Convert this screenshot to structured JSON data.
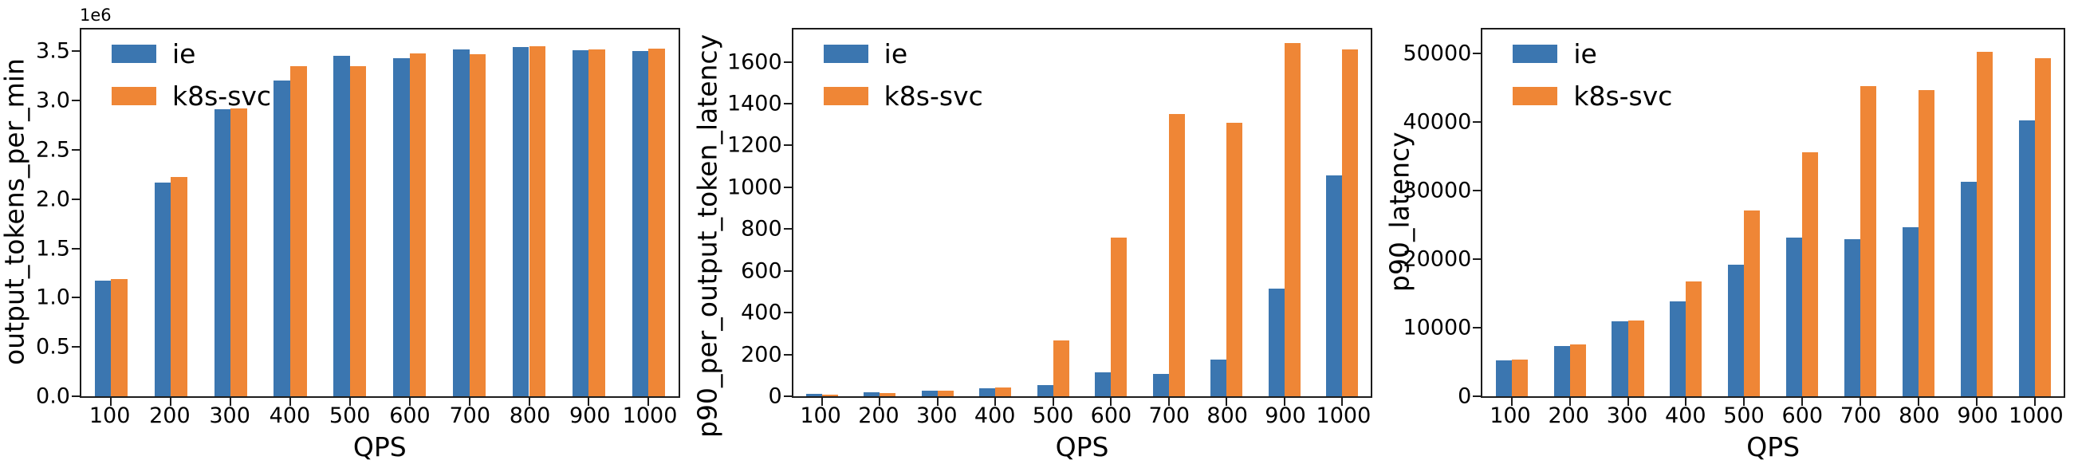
{
  "figure": {
    "background": "#ffffff",
    "series_colors": {
      "ie": "#3b76b0",
      "k8s-svc": "#ef8636"
    }
  },
  "chart_data": [
    {
      "type": "bar",
      "ylabel": "output_tokens_per_min",
      "scale_label": "1e6",
      "xlabel": "QPS",
      "grid": false,
      "legend_position": "upper left",
      "categories": [
        100,
        200,
        300,
        400,
        500,
        600,
        700,
        800,
        900,
        1000
      ],
      "series": [
        {
          "name": "ie",
          "color": "#3b76b0",
          "values": [
            1170000,
            2170000,
            2910000,
            3200000,
            3450000,
            3430000,
            3520000,
            3540000,
            3510000,
            3500000
          ]
        },
        {
          "name": "k8s-svc",
          "color": "#ef8636",
          "values": [
            1190000,
            2220000,
            2920000,
            3350000,
            3350000,
            3480000,
            3470000,
            3550000,
            3520000,
            3530000
          ]
        }
      ],
      "yticks": {
        "values": [
          0,
          500000,
          1000000,
          1500000,
          2000000,
          2500000,
          3000000,
          3500000
        ],
        "labels": [
          "0.0",
          "0.5",
          "1.0",
          "1.5",
          "2.0",
          "2.5",
          "3.0",
          "3.5"
        ]
      },
      "ylim": [
        0,
        3720000
      ]
    },
    {
      "type": "bar",
      "ylabel": "p90_per_output_token_latency",
      "xlabel": "QPS",
      "grid": false,
      "legend_position": "upper left",
      "categories": [
        100,
        200,
        300,
        400,
        500,
        600,
        700,
        800,
        900,
        1000
      ],
      "series": [
        {
          "name": "ie",
          "color": "#3b76b0",
          "values": [
            13,
            18,
            27,
            38,
            52,
            116,
            105,
            175,
            515,
            1055
          ]
        },
        {
          "name": "k8s-svc",
          "color": "#ef8636",
          "values": [
            9,
            15,
            25,
            41,
            268,
            760,
            1350,
            1310,
            1690,
            1660
          ]
        }
      ],
      "yticks": {
        "values": [
          0,
          200,
          400,
          600,
          800,
          1000,
          1200,
          1400,
          1600
        ],
        "labels": [
          "0",
          "200",
          "400",
          "600",
          "800",
          "1000",
          "1200",
          "1400",
          "1600"
        ]
      },
      "ylim": [
        0,
        1755
      ]
    },
    {
      "type": "bar",
      "ylabel": "p90_latency",
      "xlabel": "QPS",
      "grid": false,
      "legend_position": "upper left",
      "categories": [
        100,
        200,
        300,
        400,
        500,
        600,
        700,
        800,
        900,
        1000
      ],
      "series": [
        {
          "name": "ie",
          "color": "#3b76b0",
          "values": [
            5200,
            7300,
            10900,
            13900,
            19200,
            23100,
            22900,
            24700,
            31300,
            40200
          ]
        },
        {
          "name": "k8s-svc",
          "color": "#ef8636",
          "values": [
            5400,
            7600,
            11100,
            16800,
            27100,
            35600,
            45300,
            44700,
            50300,
            49300
          ]
        }
      ],
      "yticks": {
        "values": [
          0,
          10000,
          20000,
          30000,
          40000,
          50000
        ],
        "labels": [
          "0",
          "10000",
          "20000",
          "30000",
          "40000",
          "50000"
        ]
      },
      "ylim": [
        0,
        53500
      ]
    }
  ]
}
